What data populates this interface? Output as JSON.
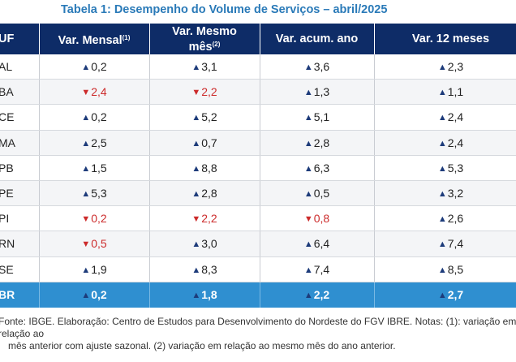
{
  "title": {
    "label": "Tabela 1:",
    "text": "Desempenho do Volume de Serviços – abril/2025"
  },
  "header": {
    "uf": "UF",
    "c1": "Var. Mensal",
    "c1_sup": "(1)",
    "c2_line1": "Var. Mesmo",
    "c2_line2": "mês",
    "c2_sup": "(2)",
    "c3": "Var. acum. ano",
    "c4": "Var. 12 meses"
  },
  "rows": [
    {
      "uf": "AL",
      "mensal": {
        "dir": "up",
        "v": "0,2"
      },
      "mesmo": {
        "dir": "up",
        "v": "3,1"
      },
      "acum": {
        "dir": "up",
        "v": "3,6"
      },
      "doze": {
        "dir": "up",
        "v": "2,3"
      }
    },
    {
      "uf": "BA",
      "mensal": {
        "dir": "down",
        "v": "2,4"
      },
      "mesmo": {
        "dir": "down",
        "v": "2,2"
      },
      "acum": {
        "dir": "up",
        "v": "1,3"
      },
      "doze": {
        "dir": "up",
        "v": "1,1"
      }
    },
    {
      "uf": "CE",
      "mensal": {
        "dir": "up",
        "v": "0,2"
      },
      "mesmo": {
        "dir": "up",
        "v": "5,2"
      },
      "acum": {
        "dir": "up",
        "v": "5,1"
      },
      "doze": {
        "dir": "up",
        "v": "2,4"
      }
    },
    {
      "uf": "MA",
      "mensal": {
        "dir": "up",
        "v": "2,5"
      },
      "mesmo": {
        "dir": "up",
        "v": "0,7"
      },
      "acum": {
        "dir": "up",
        "v": "2,8"
      },
      "doze": {
        "dir": "up",
        "v": "2,4"
      }
    },
    {
      "uf": "PB",
      "mensal": {
        "dir": "up",
        "v": "1,5"
      },
      "mesmo": {
        "dir": "up",
        "v": "8,8"
      },
      "acum": {
        "dir": "up",
        "v": "6,3"
      },
      "doze": {
        "dir": "up",
        "v": "5,3"
      }
    },
    {
      "uf": "PE",
      "mensal": {
        "dir": "up",
        "v": "5,3"
      },
      "mesmo": {
        "dir": "up",
        "v": "2,8"
      },
      "acum": {
        "dir": "up",
        "v": "0,5"
      },
      "doze": {
        "dir": "up",
        "v": "3,2"
      }
    },
    {
      "uf": "PI",
      "mensal": {
        "dir": "down",
        "v": "0,2"
      },
      "mesmo": {
        "dir": "down",
        "v": "2,2"
      },
      "acum": {
        "dir": "down",
        "v": "0,8"
      },
      "doze": {
        "dir": "up",
        "v": "2,6"
      }
    },
    {
      "uf": "RN",
      "mensal": {
        "dir": "down",
        "v": "0,5"
      },
      "mesmo": {
        "dir": "up",
        "v": "3,0"
      },
      "acum": {
        "dir": "up",
        "v": "6,4"
      },
      "doze": {
        "dir": "up",
        "v": "7,4"
      }
    },
    {
      "uf": "SE",
      "mensal": {
        "dir": "up",
        "v": "1,9"
      },
      "mesmo": {
        "dir": "up",
        "v": "8,3"
      },
      "acum": {
        "dir": "up",
        "v": "7,4"
      },
      "doze": {
        "dir": "up",
        "v": "8,5"
      }
    }
  ],
  "total": {
    "uf": "BR",
    "mensal": {
      "dir": "up",
      "v": "0,2"
    },
    "mesmo": {
      "dir": "up",
      "v": "1,8"
    },
    "acum": {
      "dir": "up",
      "v": "2,2"
    },
    "doze": {
      "dir": "up",
      "v": "2,7"
    }
  },
  "arrows": {
    "up": "▲",
    "down": "▼"
  },
  "colors": {
    "header_bg": "#0e2c67",
    "total_bg": "#2f8fd0",
    "title": "#2a7ab8",
    "up": "#1d3b7a",
    "down": "#cc2b2b"
  },
  "note": {
    "line1": "Fonte: IBGE. Elaboração: Centro de Estudos para Desenvolvimento do Nordeste do FGV IBRE. Notas: (1): variação em relação ao",
    "line2": "mês anterior com ajuste sazonal. (2) variação em relação ao mesmo mês do ano anterior."
  }
}
